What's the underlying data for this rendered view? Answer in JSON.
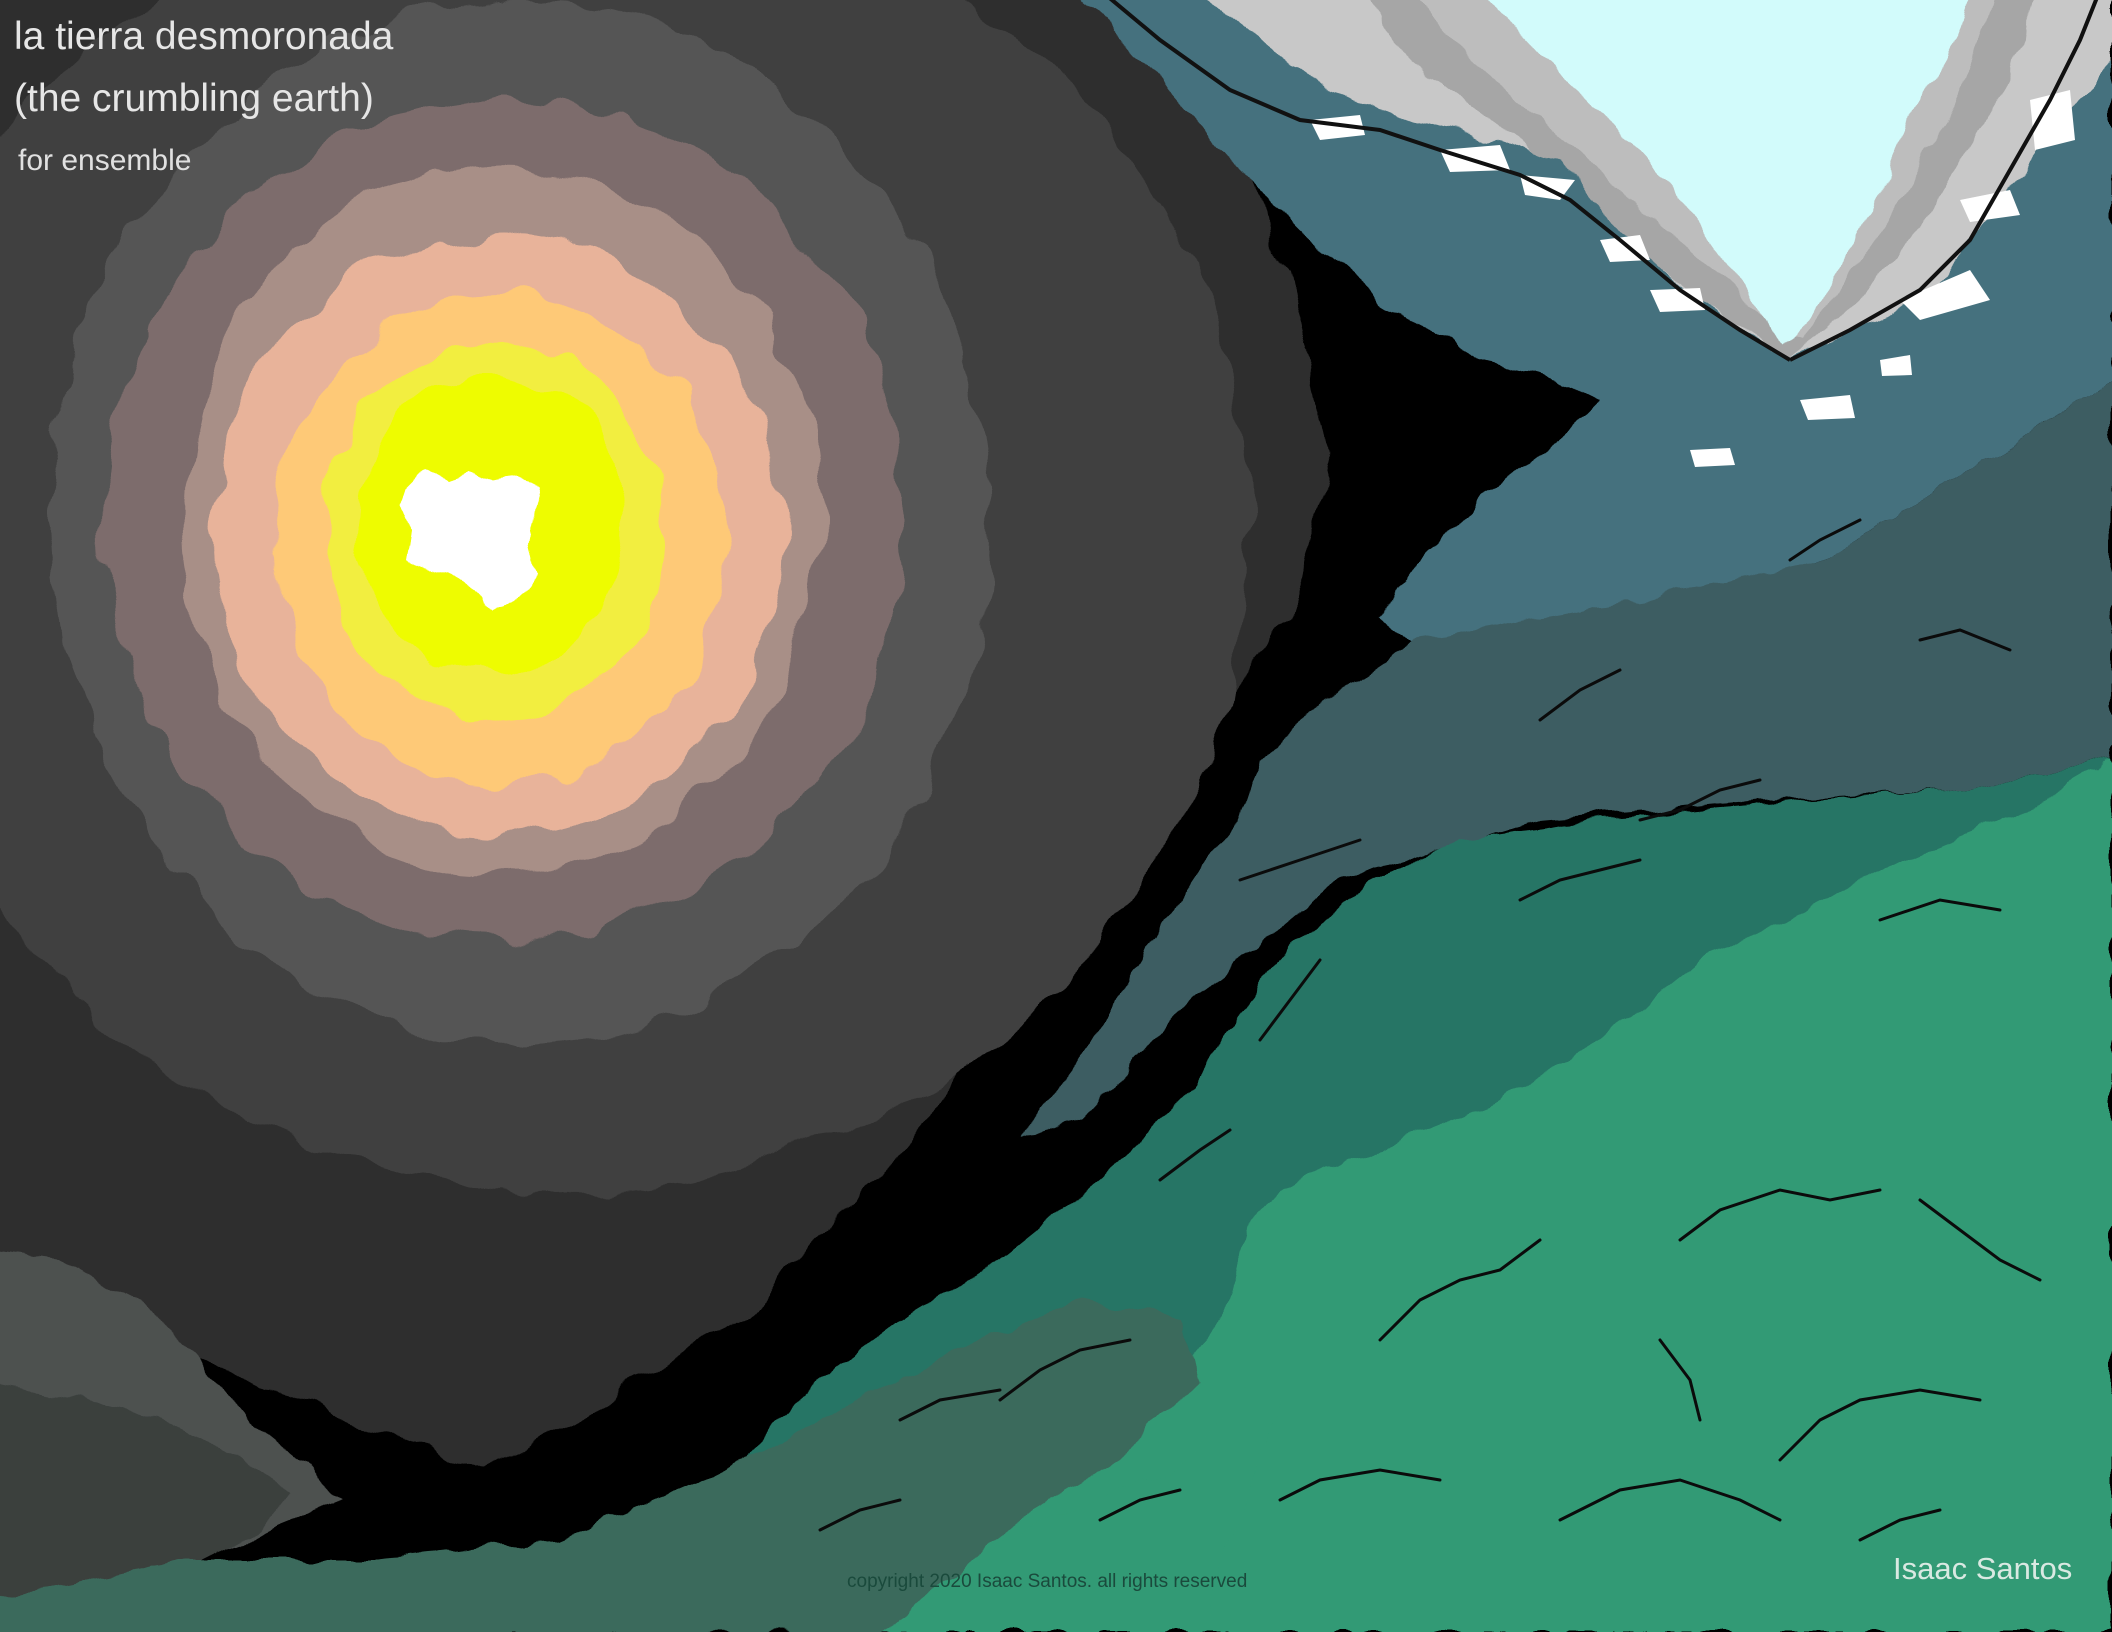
{
  "cover": {
    "title": "la tierra desmoronada",
    "title_translation": "(the crumbling earth)",
    "instrumentation": "for ensemble",
    "composer": "Isaac Santos",
    "copyright": "copyright 2020 Isaac Santos. all rights reserved"
  },
  "palette": {
    "sun_core": "#ffffff",
    "sun_inner": "#eefc00",
    "sun_yellow": "#f2ee40",
    "sun_orange": "#fec977",
    "sun_peach": "#e8b39a",
    "halo_mauve": "#a88f87",
    "halo_brown": "#7d6c6c",
    "halo_grey": "#555555",
    "halo_dark": "#404040",
    "halo_darker": "#2e2e2e",
    "void": "#000000",
    "sky": "#d2fbfb",
    "cliff_grey": "#a6a6a6",
    "water_teal": "#45717e",
    "slate": "#3e5d62",
    "dark_green": "#287565",
    "green": "#339a75",
    "moss": "#3b6a5c",
    "rock_grey": "#3a3f3d",
    "rock_light": "#4d5150"
  }
}
